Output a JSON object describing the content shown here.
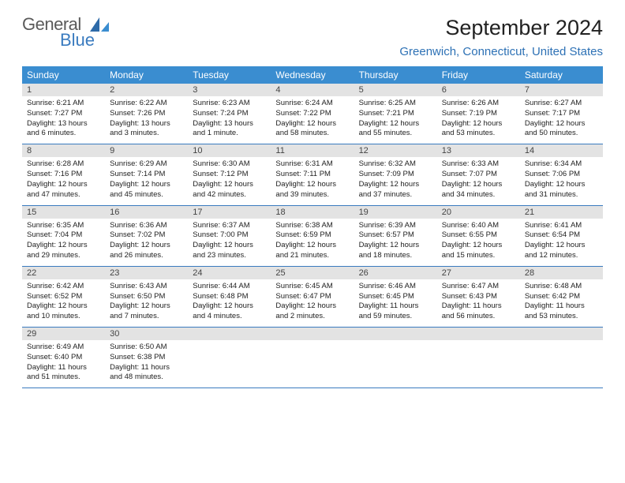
{
  "logo": {
    "line1": "General",
    "line2": "Blue"
  },
  "title": "September 2024",
  "location": "Greenwich, Connecticut, United States",
  "colors": {
    "header_bg": "#3a8dd0",
    "header_text": "#ffffff",
    "daybar_bg": "#e3e3e3",
    "border": "#3a7bbf",
    "location_text": "#2d71b5"
  },
  "day_names": [
    "Sunday",
    "Monday",
    "Tuesday",
    "Wednesday",
    "Thursday",
    "Friday",
    "Saturday"
  ],
  "weeks": [
    [
      {
        "n": "1",
        "sr": "Sunrise: 6:21 AM",
        "ss": "Sunset: 7:27 PM",
        "dl": "Daylight: 13 hours and 6 minutes."
      },
      {
        "n": "2",
        "sr": "Sunrise: 6:22 AM",
        "ss": "Sunset: 7:26 PM",
        "dl": "Daylight: 13 hours and 3 minutes."
      },
      {
        "n": "3",
        "sr": "Sunrise: 6:23 AM",
        "ss": "Sunset: 7:24 PM",
        "dl": "Daylight: 13 hours and 1 minute."
      },
      {
        "n": "4",
        "sr": "Sunrise: 6:24 AM",
        "ss": "Sunset: 7:22 PM",
        "dl": "Daylight: 12 hours and 58 minutes."
      },
      {
        "n": "5",
        "sr": "Sunrise: 6:25 AM",
        "ss": "Sunset: 7:21 PM",
        "dl": "Daylight: 12 hours and 55 minutes."
      },
      {
        "n": "6",
        "sr": "Sunrise: 6:26 AM",
        "ss": "Sunset: 7:19 PM",
        "dl": "Daylight: 12 hours and 53 minutes."
      },
      {
        "n": "7",
        "sr": "Sunrise: 6:27 AM",
        "ss": "Sunset: 7:17 PM",
        "dl": "Daylight: 12 hours and 50 minutes."
      }
    ],
    [
      {
        "n": "8",
        "sr": "Sunrise: 6:28 AM",
        "ss": "Sunset: 7:16 PM",
        "dl": "Daylight: 12 hours and 47 minutes."
      },
      {
        "n": "9",
        "sr": "Sunrise: 6:29 AM",
        "ss": "Sunset: 7:14 PM",
        "dl": "Daylight: 12 hours and 45 minutes."
      },
      {
        "n": "10",
        "sr": "Sunrise: 6:30 AM",
        "ss": "Sunset: 7:12 PM",
        "dl": "Daylight: 12 hours and 42 minutes."
      },
      {
        "n": "11",
        "sr": "Sunrise: 6:31 AM",
        "ss": "Sunset: 7:11 PM",
        "dl": "Daylight: 12 hours and 39 minutes."
      },
      {
        "n": "12",
        "sr": "Sunrise: 6:32 AM",
        "ss": "Sunset: 7:09 PM",
        "dl": "Daylight: 12 hours and 37 minutes."
      },
      {
        "n": "13",
        "sr": "Sunrise: 6:33 AM",
        "ss": "Sunset: 7:07 PM",
        "dl": "Daylight: 12 hours and 34 minutes."
      },
      {
        "n": "14",
        "sr": "Sunrise: 6:34 AM",
        "ss": "Sunset: 7:06 PM",
        "dl": "Daylight: 12 hours and 31 minutes."
      }
    ],
    [
      {
        "n": "15",
        "sr": "Sunrise: 6:35 AM",
        "ss": "Sunset: 7:04 PM",
        "dl": "Daylight: 12 hours and 29 minutes."
      },
      {
        "n": "16",
        "sr": "Sunrise: 6:36 AM",
        "ss": "Sunset: 7:02 PM",
        "dl": "Daylight: 12 hours and 26 minutes."
      },
      {
        "n": "17",
        "sr": "Sunrise: 6:37 AM",
        "ss": "Sunset: 7:00 PM",
        "dl": "Daylight: 12 hours and 23 minutes."
      },
      {
        "n": "18",
        "sr": "Sunrise: 6:38 AM",
        "ss": "Sunset: 6:59 PM",
        "dl": "Daylight: 12 hours and 21 minutes."
      },
      {
        "n": "19",
        "sr": "Sunrise: 6:39 AM",
        "ss": "Sunset: 6:57 PM",
        "dl": "Daylight: 12 hours and 18 minutes."
      },
      {
        "n": "20",
        "sr": "Sunrise: 6:40 AM",
        "ss": "Sunset: 6:55 PM",
        "dl": "Daylight: 12 hours and 15 minutes."
      },
      {
        "n": "21",
        "sr": "Sunrise: 6:41 AM",
        "ss": "Sunset: 6:54 PM",
        "dl": "Daylight: 12 hours and 12 minutes."
      }
    ],
    [
      {
        "n": "22",
        "sr": "Sunrise: 6:42 AM",
        "ss": "Sunset: 6:52 PM",
        "dl": "Daylight: 12 hours and 10 minutes."
      },
      {
        "n": "23",
        "sr": "Sunrise: 6:43 AM",
        "ss": "Sunset: 6:50 PM",
        "dl": "Daylight: 12 hours and 7 minutes."
      },
      {
        "n": "24",
        "sr": "Sunrise: 6:44 AM",
        "ss": "Sunset: 6:48 PM",
        "dl": "Daylight: 12 hours and 4 minutes."
      },
      {
        "n": "25",
        "sr": "Sunrise: 6:45 AM",
        "ss": "Sunset: 6:47 PM",
        "dl": "Daylight: 12 hours and 2 minutes."
      },
      {
        "n": "26",
        "sr": "Sunrise: 6:46 AM",
        "ss": "Sunset: 6:45 PM",
        "dl": "Daylight: 11 hours and 59 minutes."
      },
      {
        "n": "27",
        "sr": "Sunrise: 6:47 AM",
        "ss": "Sunset: 6:43 PM",
        "dl": "Daylight: 11 hours and 56 minutes."
      },
      {
        "n": "28",
        "sr": "Sunrise: 6:48 AM",
        "ss": "Sunset: 6:42 PM",
        "dl": "Daylight: 11 hours and 53 minutes."
      }
    ],
    [
      {
        "n": "29",
        "sr": "Sunrise: 6:49 AM",
        "ss": "Sunset: 6:40 PM",
        "dl": "Daylight: 11 hours and 51 minutes."
      },
      {
        "n": "30",
        "sr": "Sunrise: 6:50 AM",
        "ss": "Sunset: 6:38 PM",
        "dl": "Daylight: 11 hours and 48 minutes."
      },
      null,
      null,
      null,
      null,
      null
    ]
  ]
}
